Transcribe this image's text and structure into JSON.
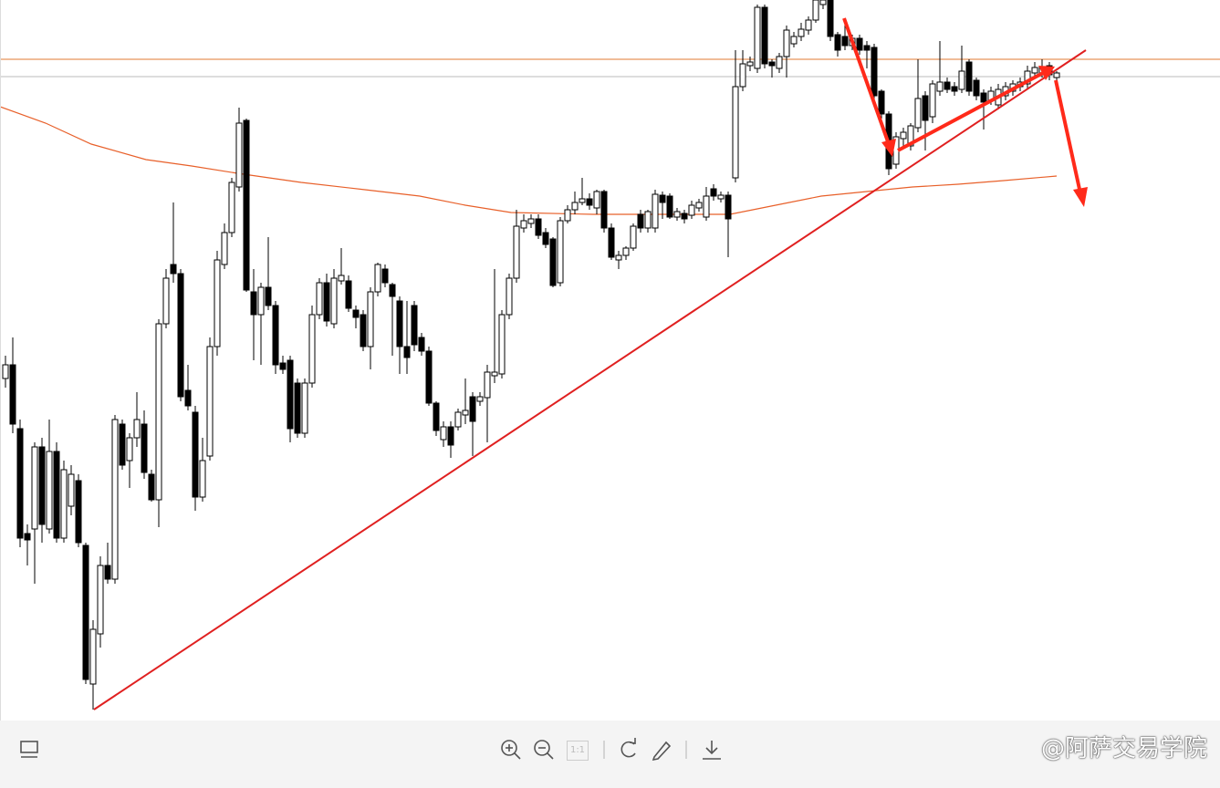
{
  "chart_data": {
    "type": "candlestick",
    "ylim": [
      0,
      790
    ],
    "up_color": "#ffffff",
    "down_color": "#000000",
    "ohlc": [
      [
        375,
        400,
        365,
        390
      ],
      [
        390,
        420,
        315,
        325
      ],
      [
        320,
        330,
        190,
        200
      ],
      [
        205,
        215,
        170,
        198
      ],
      [
        210,
        305,
        150,
        300
      ],
      [
        300,
        310,
        195,
        215
      ],
      [
        210,
        330,
        205,
        295
      ],
      [
        295,
        305,
        195,
        200
      ],
      [
        200,
        285,
        195,
        275
      ],
      [
        235,
        280,
        225,
        270
      ],
      [
        263,
        270,
        190,
        195
      ],
      [
        192,
        195,
        40,
        45
      ],
      [
        40,
        110,
        12,
        100
      ],
      [
        95,
        180,
        80,
        170
      ],
      [
        170,
        195,
        150,
        155
      ],
      [
        155,
        335,
        150,
        330
      ],
      [
        325,
        330,
        275,
        280
      ],
      [
        285,
        315,
        255,
        310
      ],
      [
        310,
        360,
        300,
        330
      ],
      [
        325,
        340,
        265,
        272
      ],
      [
        270,
        275,
        240,
        242
      ],
      [
        242,
        440,
        212,
        435
      ],
      [
        435,
        495,
        430,
        485
      ],
      [
        500,
        568,
        480,
        490
      ],
      [
        490,
        495,
        350,
        355
      ],
      [
        362,
        390,
        340,
        345
      ],
      [
        338,
        345,
        230,
        245
      ],
      [
        245,
        310,
        240,
        285
      ],
      [
        290,
        420,
        285,
        410
      ],
      [
        410,
        515,
        400,
        505
      ],
      [
        500,
        545,
        495,
        535
      ],
      [
        535,
        595,
        530,
        590
      ],
      [
        585,
        672,
        580,
        655
      ],
      [
        658,
        660,
        470,
        472
      ],
      [
        470,
        495,
        395,
        445
      ],
      [
        445,
        480,
        390,
        475
      ],
      [
        475,
        530,
        450,
        455
      ],
      [
        455,
        460,
        380,
        390
      ],
      [
        392,
        400,
        380,
        385
      ],
      [
        395,
        400,
        305,
        320
      ],
      [
        370,
        375,
        310,
        315
      ],
      [
        315,
        375,
        310,
        370
      ],
      [
        370,
        455,
        365,
        445
      ],
      [
        445,
        485,
        440,
        480
      ],
      [
        480,
        490,
        432,
        438
      ],
      [
        435,
        495,
        430,
        485
      ],
      [
        482,
        518,
        478,
        488
      ],
      [
        482,
        488,
        448,
        452
      ],
      [
        450,
        455,
        430,
        442
      ],
      [
        445,
        450,
        405,
        410
      ],
      [
        410,
        475,
        385,
        470
      ],
      [
        470,
        502,
        465,
        500
      ],
      [
        495,
        500,
        475,
        480
      ],
      [
        478,
        480,
        400,
        465
      ],
      [
        460,
        465,
        380,
        410
      ],
      [
        410,
        460,
        380,
        398
      ],
      [
        455,
        460,
        405,
        412
      ],
      [
        420,
        425,
        400,
        405
      ],
      [
        405,
        410,
        345,
        348
      ],
      [
        348,
        350,
        312,
        318
      ],
      [
        308,
        328,
        300,
        322
      ],
      [
        322,
        328,
        288,
        302
      ],
      [
        322,
        342,
        318,
        338
      ],
      [
        335,
        375,
        325,
        340
      ],
      [
        355,
        360,
        290,
        328
      ],
      [
        350,
        360,
        345,
        355
      ],
      [
        354,
        390,
        305,
        382
      ],
      [
        378,
        495,
        370,
        382
      ],
      [
        380,
        450,
        375,
        445
      ],
      [
        445,
        490,
        440,
        485
      ],
      [
        485,
        560,
        480,
        542
      ],
      [
        540,
        555,
        535,
        548
      ],
      [
        545,
        555,
        540,
        550
      ],
      [
        550,
        555,
        528,
        532
      ],
      [
        535,
        540,
        518,
        522
      ],
      [
        528,
        530,
        475,
        477
      ],
      [
        480,
        552,
        476,
        548
      ],
      [
        548,
        565,
        545,
        560
      ],
      [
        560,
        580,
        555,
        568
      ],
      [
        568,
        595,
        565,
        572
      ],
      [
        572,
        578,
        560,
        565
      ],
      [
        562,
        582,
        555,
        580
      ],
      [
        580,
        582,
        535,
        540
      ],
      [
        540,
        545,
        505,
        508
      ],
      [
        505,
        515,
        495,
        510
      ],
      [
        510,
        520,
        505,
        518
      ],
      [
        518,
        545,
        515,
        542
      ],
      [
        555,
        560,
        535,
        540
      ],
      [
        540,
        560,
        535,
        558
      ],
      [
        540,
        582,
        535,
        577
      ],
      [
        576,
        580,
        550,
        568
      ],
      [
        575,
        578,
        550,
        552
      ],
      [
        552,
        562,
        548,
        558
      ],
      [
        556,
        560,
        545,
        550
      ],
      [
        554,
        570,
        550,
        565
      ],
      [
        562,
        572,
        558,
        568
      ],
      [
        552,
        585,
        548,
        575
      ],
      [
        583,
        588,
        570,
        575
      ],
      [
        572,
        580,
        568,
        576
      ],
      [
        576,
        580,
        508,
        550
      ],
      [
        595,
        735,
        590,
        695
      ],
      [
        695,
        735,
        690,
        720
      ],
      [
        718,
        728,
        712,
        722
      ],
      [
        715,
        785,
        710,
        782
      ],
      [
        782,
        785,
        715,
        720
      ],
      [
        722,
        725,
        705,
        718
      ],
      [
        715,
        732,
        710,
        728
      ],
      [
        728,
        762,
        705,
        757
      ],
      [
        742,
        755,
        738,
        750
      ],
      [
        750,
        765,
        745,
        758
      ],
      [
        757,
        772,
        752,
        768
      ],
      [
        768,
        790,
        765,
        790
      ],
      [
        785,
        790,
        780,
        790
      ],
      [
        790,
        790,
        745,
        750
      ],
      [
        752,
        755,
        728,
        735
      ],
      [
        750,
        770,
        735,
        740
      ],
      [
        740,
        752,
        735,
        748
      ],
      [
        748,
        752,
        730,
        735
      ],
      [
        740,
        745,
        715,
        735
      ],
      [
        738,
        742,
        680,
        685
      ],
      [
        690,
        692,
        660,
        665
      ],
      [
        665,
        668,
        598,
        605
      ],
      [
        610,
        645,
        605,
        640
      ],
      [
        638,
        650,
        630,
        645
      ],
      [
        630,
        655,
        625,
        652
      ],
      [
        650,
        725,
        645,
        682
      ],
      [
        685,
        690,
        625,
        658
      ],
      [
        662,
        702,
        655,
        698
      ],
      [
        690,
        745,
        685,
        700
      ],
      [
        700,
        705,
        688,
        692
      ],
      [
        695,
        700,
        685,
        690
      ],
      [
        692,
        740,
        688,
        712
      ],
      [
        722,
        725,
        685,
        690
      ],
      [
        702,
        705,
        680,
        685
      ],
      [
        688,
        692,
        648,
        678
      ],
      [
        680,
        695,
        675,
        690
      ],
      [
        675,
        698,
        670,
        692
      ],
      [
        685,
        700,
        680,
        695
      ],
      [
        690,
        702,
        685,
        698
      ],
      [
        695,
        705,
        690,
        700
      ],
      [
        698,
        718,
        692,
        712
      ],
      [
        710,
        722,
        705,
        716
      ],
      [
        710,
        725,
        705,
        717
      ],
      [
        718,
        722,
        702,
        708
      ],
      [
        705,
        712,
        700,
        710
      ]
    ]
  },
  "toolbar": {
    "actual_size": "1:1"
  },
  "watermark": "@阿萨交易学院"
}
